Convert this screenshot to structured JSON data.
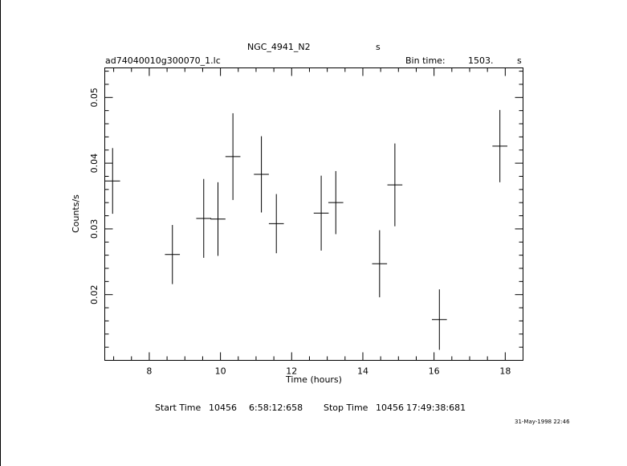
{
  "header": {
    "object_name": "NGC_4941_N2",
    "object_unit": "s",
    "file_name": "ad74040010g300070_1.lc",
    "bin_time_label": "Bin time:",
    "bin_time_value": "1503.",
    "bin_time_unit": "s"
  },
  "footer": {
    "start_label": "Start Time",
    "start_day": "10456",
    "start_time": "6:58:12:658",
    "stop_label": "Stop Time",
    "stop_day": "10456",
    "stop_time": "17:49:38:681",
    "plot_date": "31-May-1998 22:46"
  },
  "chart_data": {
    "type": "scatter",
    "title": "NGC_4941_N2",
    "xlabel": "Time (hours)",
    "ylabel": "Counts/s",
    "xlim": [
      6.75,
      18.5
    ],
    "ylim": [
      0.01,
      0.0545
    ],
    "x_ticks": [
      8,
      10,
      12,
      14,
      16,
      18
    ],
    "y_ticks": [
      0.02,
      0.03,
      0.04,
      0.05
    ],
    "x_tick_labels": [
      "8",
      "10",
      "12",
      "14",
      "16",
      "18"
    ],
    "y_tick_labels": [
      "0.02",
      "0.03",
      "0.04",
      "0.05"
    ],
    "grid": false,
    "points": [
      {
        "x": 6.97,
        "xerr": 0.21,
        "y": 0.0373,
        "yerr": 0.005
      },
      {
        "x": 8.65,
        "xerr": 0.21,
        "y": 0.0261,
        "yerr": 0.0045
      },
      {
        "x": 9.53,
        "xerr": 0.21,
        "y": 0.0316,
        "yerr": 0.006
      },
      {
        "x": 9.93,
        "xerr": 0.21,
        "y": 0.0315,
        "yerr": 0.0056
      },
      {
        "x": 10.35,
        "xerr": 0.21,
        "y": 0.041,
        "yerr": 0.0066
      },
      {
        "x": 11.15,
        "xerr": 0.21,
        "y": 0.0383,
        "yerr": 0.0058
      },
      {
        "x": 11.57,
        "xerr": 0.21,
        "y": 0.0308,
        "yerr": 0.0045
      },
      {
        "x": 12.83,
        "xerr": 0.21,
        "y": 0.0324,
        "yerr": 0.0057
      },
      {
        "x": 13.24,
        "xerr": 0.21,
        "y": 0.034,
        "yerr": 0.0048
      },
      {
        "x": 14.47,
        "xerr": 0.21,
        "y": 0.0247,
        "yerr": 0.0051
      },
      {
        "x": 14.9,
        "xerr": 0.21,
        "y": 0.0367,
        "yerr": 0.0063
      },
      {
        "x": 16.15,
        "xerr": 0.21,
        "y": 0.0162,
        "yerr": 0.0046
      },
      {
        "x": 17.85,
        "xerr": 0.21,
        "y": 0.0426,
        "yerr": 0.0055
      }
    ]
  }
}
